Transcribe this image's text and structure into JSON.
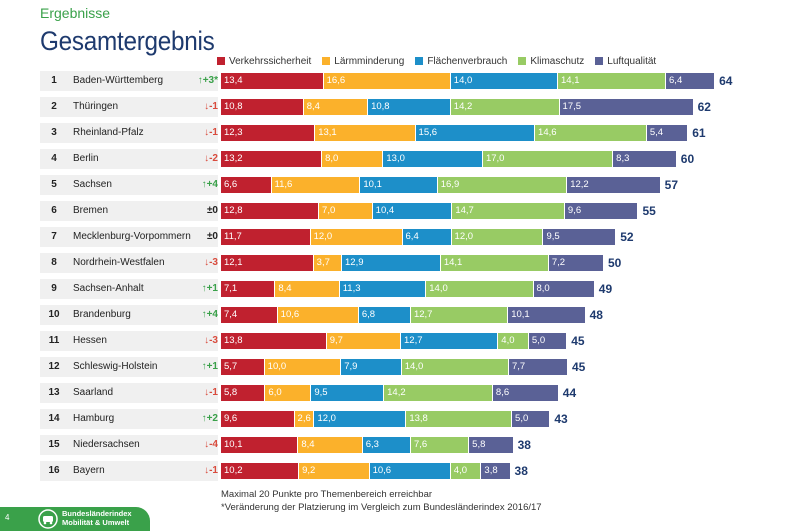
{
  "header": {
    "section": "Ergebnisse",
    "title": "Gesamtergebnis"
  },
  "chart_data": {
    "type": "bar",
    "orientation": "horizontal",
    "stacked": true,
    "legend_position": "top",
    "categories": [
      "Verkehrssicherheit",
      "Lärmminderung",
      "Flächenverbrauch",
      "Klimaschutz",
      "Luftqualität"
    ],
    "colors": [
      "#c0212f",
      "#fbb12b",
      "#1d8fc9",
      "#98cb64",
      "#5a6196"
    ],
    "rows": [
      {
        "rank": "1",
        "state": "Baden-Württemberg",
        "change": "↑+3*",
        "dir": "up",
        "values": [
          13.4,
          16.6,
          14.0,
          14.1,
          6.4
        ],
        "total": "64"
      },
      {
        "rank": "2",
        "state": "Thüringen",
        "change": "↓-1",
        "dir": "down",
        "values": [
          10.8,
          8.4,
          10.8,
          14.2,
          17.5
        ],
        "total": "62"
      },
      {
        "rank": "3",
        "state": "Rheinland-Pfalz",
        "change": "↓-1",
        "dir": "down",
        "values": [
          12.3,
          13.1,
          15.6,
          14.6,
          5.4
        ],
        "total": "61"
      },
      {
        "rank": "4",
        "state": "Berlin",
        "change": "↓-2",
        "dir": "down",
        "values": [
          13.2,
          8.0,
          13.0,
          17.0,
          8.3
        ],
        "total": "60"
      },
      {
        "rank": "5",
        "state": "Sachsen",
        "change": "↑+4",
        "dir": "up",
        "values": [
          6.6,
          11.6,
          10.1,
          16.9,
          12.2
        ],
        "total": "57"
      },
      {
        "rank": "6",
        "state": "Bremen",
        "change": "±0",
        "dir": "neutral",
        "values": [
          12.8,
          7.0,
          10.4,
          14.7,
          9.6
        ],
        "total": "55"
      },
      {
        "rank": "7",
        "state": "Mecklenburg-Vorpommern",
        "change": "±0",
        "dir": "neutral",
        "values": [
          11.7,
          12.0,
          6.4,
          12.0,
          9.5
        ],
        "total": "52"
      },
      {
        "rank": "8",
        "state": "Nordrhein-Westfalen",
        "change": "↓-3",
        "dir": "down",
        "values": [
          12.1,
          3.7,
          12.9,
          14.1,
          7.2
        ],
        "total": "50"
      },
      {
        "rank": "9",
        "state": "Sachsen-Anhalt",
        "change": "↑+1",
        "dir": "up",
        "values": [
          7.1,
          8.4,
          11.3,
          14.0,
          8.0
        ],
        "total": "49"
      },
      {
        "rank": "10",
        "state": "Brandenburg",
        "change": "↑+4",
        "dir": "up",
        "values": [
          7.4,
          10.6,
          6.8,
          12.7,
          10.1
        ],
        "total": "48"
      },
      {
        "rank": "11",
        "state": "Hessen",
        "change": "↓-3",
        "dir": "down",
        "values": [
          13.8,
          9.7,
          12.7,
          4.0,
          5.0
        ],
        "total": "45"
      },
      {
        "rank": "12",
        "state": "Schleswig-Holstein",
        "change": "↑+1",
        "dir": "up",
        "values": [
          5.7,
          10.0,
          7.9,
          14.0,
          7.7
        ],
        "total": "45"
      },
      {
        "rank": "13",
        "state": "Saarland",
        "change": "↓-1",
        "dir": "down",
        "values": [
          5.8,
          6.0,
          9.5,
          14.2,
          8.6
        ],
        "total": "44"
      },
      {
        "rank": "14",
        "state": "Hamburg",
        "change": "↑+2",
        "dir": "up",
        "values": [
          9.6,
          2.6,
          12.0,
          13.8,
          5.0
        ],
        "total": "43"
      },
      {
        "rank": "15",
        "state": "Niedersachsen",
        "change": "↓-4",
        "dir": "down",
        "values": [
          10.1,
          8.4,
          6.3,
          7.6,
          5.8
        ],
        "total": "38"
      },
      {
        "rank": "16",
        "state": "Bayern",
        "change": "↓-1",
        "dir": "down",
        "values": [
          10.2,
          9.2,
          10.6,
          4.0,
          3.8
        ],
        "total": "38"
      }
    ]
  },
  "footnotes": [
    "Maximal 20 Punkte pro Themenbereich erreichbar",
    "*Veränderung der Platzierung im Vergleich zum Bundesländerindex 2016/17"
  ],
  "footer": {
    "page_number": "4",
    "logo_line1": "Bundesländerindex",
    "logo_line2": "Mobilität & Umwelt"
  }
}
